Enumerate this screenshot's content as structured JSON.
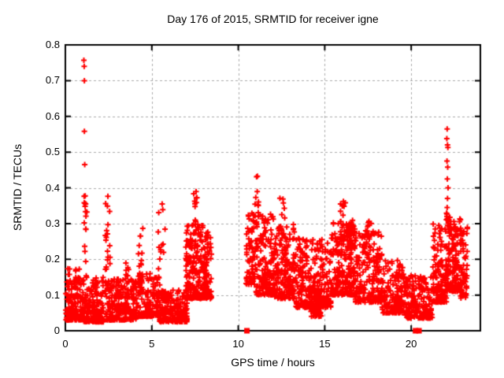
{
  "title": "Day 176 of 2015, SRMTID for receiver igne",
  "x_axis": {
    "label": "GPS time / hours",
    "min": 0,
    "max": 24,
    "ticks": [
      0,
      5,
      10,
      15,
      20
    ],
    "tick_labels": [
      "0",
      "5",
      "10",
      "15",
      "20"
    ],
    "grid": [
      5,
      10,
      15,
      20
    ]
  },
  "y_axis": {
    "label": "SRMTID / TECUs",
    "min": 0,
    "max": 0.8,
    "ticks": [
      0,
      0.1,
      0.2,
      0.3,
      0.4,
      0.5,
      0.6,
      0.7,
      0.8
    ],
    "tick_labels": [
      "0",
      "0.1",
      "0.2",
      "0.3",
      "0.4",
      "0.5",
      "0.6",
      "0.7",
      "0.8"
    ],
    "grid": [
      0.1,
      0.2,
      0.3,
      0.4,
      0.5,
      0.6,
      0.7
    ]
  },
  "colors": {
    "marker": "#ff0000",
    "grid": "#aaaaaa",
    "border": "#000000",
    "background": "#ffffff",
    "text": "#000000"
  },
  "chart_data": {
    "type": "scatter",
    "marker": "plus",
    "zero_marker": "filled-square",
    "title": "Day 176 of 2015, SRMTID for receiver igne",
    "xlabel": "GPS time / hours",
    "ylabel": "SRMTID / TECUs",
    "xlim": [
      0,
      24
    ],
    "ylim": [
      0,
      0.8
    ],
    "grid": "dashed",
    "legend": "none",
    "seed": 42,
    "notable_points": [
      [
        1.07,
        0.757
      ],
      [
        1.09,
        0.74
      ],
      [
        1.1,
        0.7
      ],
      [
        1.1,
        0.558
      ],
      [
        1.12,
        0.465
      ],
      [
        22.08,
        0.565
      ],
      [
        22.06,
        0.538
      ],
      [
        22.1,
        0.52
      ],
      [
        22.12,
        0.513
      ],
      [
        22.07,
        0.475
      ],
      [
        22.11,
        0.458
      ],
      [
        22.09,
        0.425
      ],
      [
        22.13,
        0.4
      ],
      [
        22.1,
        0.37
      ],
      [
        22.08,
        0.345
      ]
    ],
    "zero_markers_x": [
      10.5,
      20.25,
      20.45
    ],
    "data_gaps_x": [
      [
        8.45,
        10.45
      ],
      [
        23.25,
        24
      ]
    ],
    "clusters": [
      {
        "x": [
          0.02,
          1.05
        ],
        "y": [
          0.03,
          0.175
        ],
        "n": 150,
        "skew": 2.2
      },
      {
        "x": [
          1.02,
          1.25
        ],
        "y": [
          0.16,
          0.385
        ],
        "n": 16,
        "skew": 1.0
      },
      {
        "x": [
          1.05,
          2.2
        ],
        "y": [
          0.025,
          0.155
        ],
        "n": 170,
        "skew": 2.2
      },
      {
        "x": [
          2.25,
          2.6
        ],
        "y": [
          0.1,
          0.385
        ],
        "n": 26,
        "skew": 1.3
      },
      {
        "x": [
          2.3,
          4.15
        ],
        "y": [
          0.03,
          0.145
        ],
        "n": 230,
        "skew": 2.0
      },
      {
        "x": [
          3.45,
          3.7
        ],
        "y": [
          0.12,
          0.22
        ],
        "n": 8,
        "skew": 1.0
      },
      {
        "x": [
          4.2,
          4.5
        ],
        "y": [
          0.13,
          0.3
        ],
        "n": 14,
        "skew": 1.2
      },
      {
        "x": [
          4.2,
          5.4
        ],
        "y": [
          0.04,
          0.16
        ],
        "n": 150,
        "skew": 2.2
      },
      {
        "x": [
          5.35,
          5.8
        ],
        "y": [
          0.1,
          0.36
        ],
        "n": 22,
        "skew": 1.6
      },
      {
        "x": [
          5.45,
          7.05
        ],
        "y": [
          0.025,
          0.115
        ],
        "n": 200,
        "skew": 1.8
      },
      {
        "x": [
          6.95,
          8.2
        ],
        "y": [
          0.09,
          0.3
        ],
        "n": 230,
        "skew": 1.7
      },
      {
        "x": [
          7.42,
          7.65
        ],
        "y": [
          0.28,
          0.41
        ],
        "n": 12,
        "skew": 1.2
      },
      {
        "x": [
          8.1,
          8.45
        ],
        "y": [
          0.09,
          0.28
        ],
        "n": 50,
        "skew": 1.6
      },
      {
        "x": [
          10.45,
          11.0
        ],
        "y": [
          0.13,
          0.33
        ],
        "n": 70,
        "skew": 1.6
      },
      {
        "x": [
          10.95,
          11.2
        ],
        "y": [
          0.33,
          0.445
        ],
        "n": 9,
        "skew": 1.2
      },
      {
        "x": [
          11.0,
          12.1
        ],
        "y": [
          0.1,
          0.34
        ],
        "n": 170,
        "skew": 1.9
      },
      {
        "x": [
          12.4,
          12.7
        ],
        "y": [
          0.28,
          0.375
        ],
        "n": 9,
        "skew": 1.2
      },
      {
        "x": [
          12.1,
          13.3
        ],
        "y": [
          0.09,
          0.3
        ],
        "n": 180,
        "skew": 1.9
      },
      {
        "x": [
          13.3,
          15.4
        ],
        "y": [
          0.065,
          0.26
        ],
        "n": 280,
        "skew": 1.9
      },
      {
        "x": [
          14.1,
          14.8
        ],
        "y": [
          0.04,
          0.12
        ],
        "n": 60,
        "skew": 1.5
      },
      {
        "x": [
          15.4,
          16.7
        ],
        "y": [
          0.1,
          0.31
        ],
        "n": 200,
        "skew": 1.8
      },
      {
        "x": [
          15.9,
          16.2
        ],
        "y": [
          0.29,
          0.385
        ],
        "n": 10,
        "skew": 1.2
      },
      {
        "x": [
          16.25,
          16.75
        ],
        "y": [
          0.23,
          0.3
        ],
        "n": 40,
        "skew": 1.0
      },
      {
        "x": [
          16.7,
          18.3
        ],
        "y": [
          0.08,
          0.28
        ],
        "n": 210,
        "skew": 2.0
      },
      {
        "x": [
          17.35,
          17.7
        ],
        "y": [
          0.2,
          0.315
        ],
        "n": 18,
        "skew": 1.2
      },
      {
        "x": [
          18.3,
          19.6
        ],
        "y": [
          0.05,
          0.2
        ],
        "n": 150,
        "skew": 1.9
      },
      {
        "x": [
          19.6,
          21.25
        ],
        "y": [
          0.035,
          0.155
        ],
        "n": 180,
        "skew": 1.8
      },
      {
        "x": [
          21.25,
          22.05
        ],
        "y": [
          0.08,
          0.3
        ],
        "n": 130,
        "skew": 1.9
      },
      {
        "x": [
          21.98,
          22.25
        ],
        "y": [
          0.27,
          0.345
        ],
        "n": 12,
        "skew": 1.0
      },
      {
        "x": [
          22.0,
          22.9
        ],
        "y": [
          0.11,
          0.315
        ],
        "n": 160,
        "skew": 1.7
      },
      {
        "x": [
          22.85,
          23.25
        ],
        "y": [
          0.09,
          0.29
        ],
        "n": 55,
        "skew": 1.6
      }
    ]
  }
}
